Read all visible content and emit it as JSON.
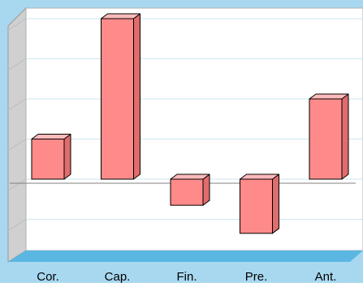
{
  "chart_data": {
    "type": "bar",
    "categories": [
      "Cor.",
      "Cap.",
      "Fin.",
      "Pre.",
      "Ant."
    ],
    "values": [
      1,
      4,
      -0.65,
      -1.35,
      2
    ],
    "ylim": [
      -2,
      4
    ],
    "grid": true,
    "title": "",
    "xlabel": "",
    "ylabel": ""
  },
  "colors": {
    "background": "#a8d8f0",
    "plot_wall": "#ffffff",
    "left_wall": "#d0d0d0",
    "floor": "#5ab7e2",
    "bar_front": "#ff8a8a",
    "bar_top": "#ffbaba",
    "bar_side": "#e06c6c",
    "gridline": "#cbe6f2",
    "zero_line": "#808080",
    "text": "#000000"
  }
}
